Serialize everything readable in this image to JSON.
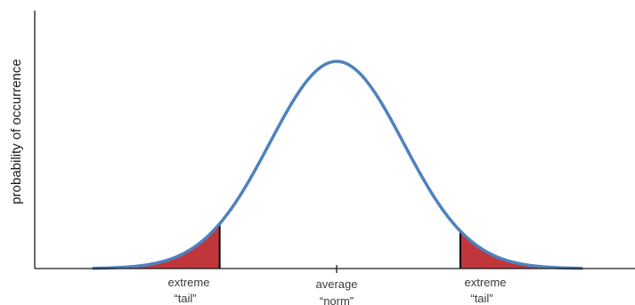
{
  "chart_data": {
    "type": "area",
    "title": "",
    "xlabel": "",
    "ylabel": "probability of occurrence",
    "distribution": "normal",
    "grid": false,
    "legend": "none",
    "curve_color": "#4f81bd",
    "tail_fill_color": "#c0363a",
    "tail_edge_color": "#000000",
    "xlim": [
      -3.9,
      3.4
    ],
    "tail_bounds": {
      "left": -1.75,
      "right": 1.85
    },
    "annotations": {
      "left_tail": [
        "extreme",
        "“tail”"
      ],
      "center": [
        "average",
        "“norm”"
      ],
      "right_tail": [
        "extreme",
        "“tail”"
      ]
    }
  }
}
